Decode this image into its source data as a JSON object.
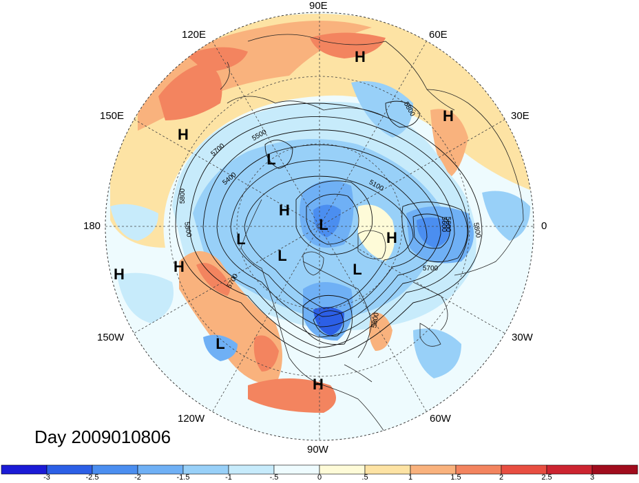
{
  "title": "Day 2009010806",
  "longitude_labels": {
    "n90e": "90E",
    "n120e": "120E",
    "n60e": "60E",
    "n150e": "150E",
    "n30e": "30E",
    "w180": "180",
    "e0": "0",
    "s150w": "150W",
    "s30w": "30W",
    "s120w": "120W",
    "s60w": "60W",
    "s90w": "90W"
  },
  "colorbar": {
    "ticks": [
      "-3",
      "-2.5",
      "-2",
      "-1.5",
      "-1",
      "-.5",
      "0",
      ".5",
      "1",
      "1.5",
      "2",
      "2.5",
      "3"
    ],
    "colors": [
      "#1b1bd6",
      "#2c5fe6",
      "#4b8ef0",
      "#6fb0f5",
      "#98d0f8",
      "#c7ebfb",
      "#eefbfe",
      "#fefbd8",
      "#fde3a4",
      "#f9b27d",
      "#f3845f",
      "#e84e41",
      "#cc2430",
      "#a00c1d"
    ]
  },
  "pressure_centers": [
    {
      "type": "H",
      "lon_ref": "north-siberia"
    },
    {
      "type": "H",
      "lon_ref": "eastern-europe"
    },
    {
      "type": "H",
      "lon_ref": "west-pacific"
    },
    {
      "type": "L",
      "lon_ref": "north-pacific"
    },
    {
      "type": "H",
      "lon_ref": "alaska"
    },
    {
      "type": "L",
      "lon_ref": "canadian-arctic"
    },
    {
      "type": "H",
      "lon_ref": "greenland-east"
    },
    {
      "type": "L",
      "lon_ref": "bering"
    },
    {
      "type": "L",
      "lon_ref": "beaufort"
    },
    {
      "type": "L",
      "lon_ref": "labrador"
    },
    {
      "type": "H",
      "lon_ref": "central-pacific-far"
    },
    {
      "type": "H",
      "lon_ref": "northeast-pacific"
    },
    {
      "type": "L",
      "lon_ref": "hawaii"
    },
    {
      "type": "H",
      "lon_ref": "central-america"
    }
  ],
  "contour_labels": [
    "5800",
    "5700",
    "5500",
    "5400",
    "5800",
    "5800",
    "5700",
    "5100",
    "5600",
    "5800",
    "5700",
    "5800",
    "5600"
  ]
}
